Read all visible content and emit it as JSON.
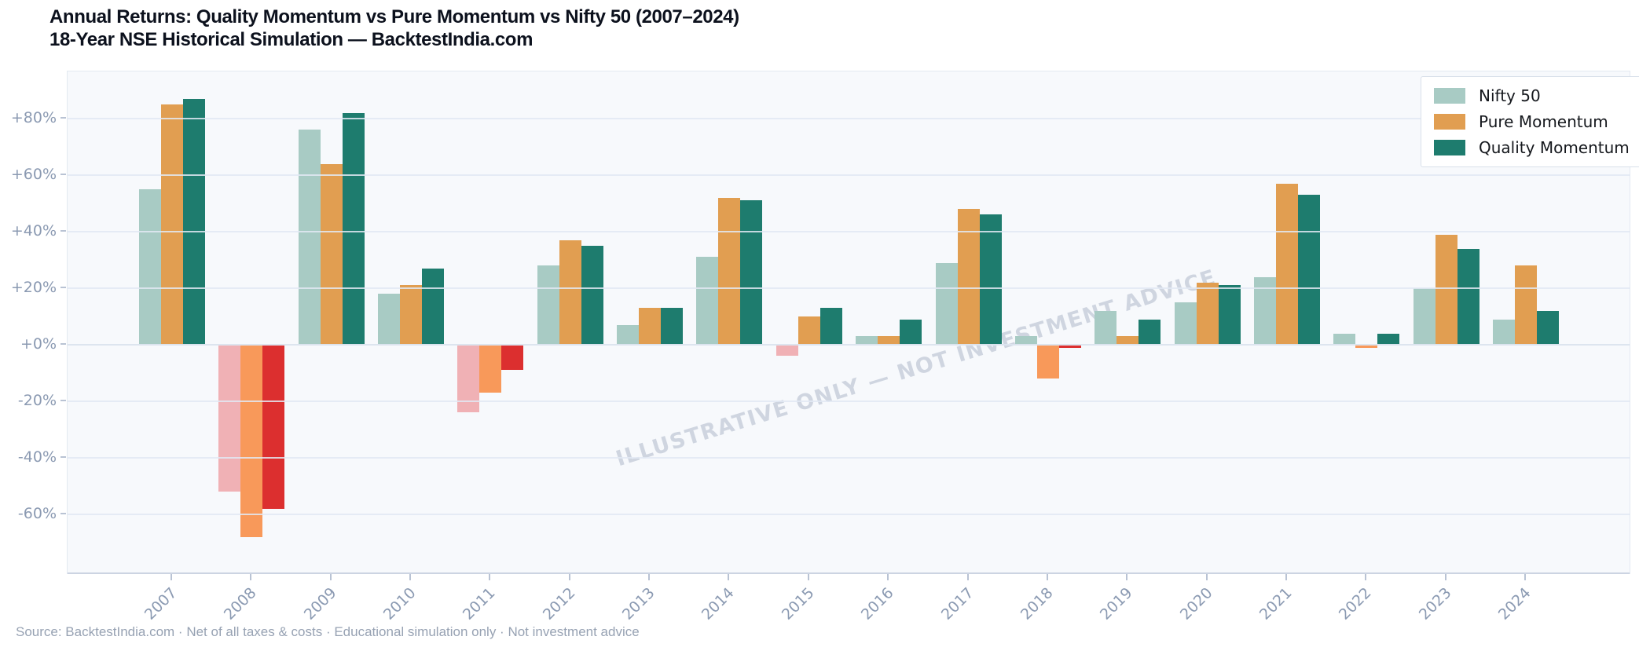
{
  "header": {
    "title_line1": "Annual Returns: Quality Momentum vs Pure Momentum vs Nifty 50 (2007–2024)",
    "title_line2": "18-Year NSE Historical Simulation — BacktestIndia.com"
  },
  "watermark_text": "ILLUSTRATIVE ONLY — NOT INVESTMENT ADVICE",
  "footer": {
    "source_line": "Source: BacktestIndia.com · Net of all taxes & costs · Educational simulation only · Not investment advice"
  },
  "legend": {
    "position": "upper-right",
    "entries": [
      {
        "label": "Nifty 50",
        "color": "#a8cbc4"
      },
      {
        "label": "Pure Momentum",
        "color": "#e19e51"
      },
      {
        "label": "Quality Momentum",
        "color": "#1e7c6e"
      }
    ]
  },
  "colors": {
    "panel_background": "#f7f9fc",
    "gridline": "#e7edf5",
    "axis_text": "#8b9ab2",
    "title_text": "#0c111d",
    "footer_text": "#97a2b3",
    "nifty_positive": "#a8cbc4",
    "nifty_negative": "#f0b1b5",
    "pure_positive": "#e19e51",
    "pure_negative": "#f8995a",
    "quality_positive": "#1e7c6e",
    "quality_negative": "#dc2f2f"
  },
  "chart_data": {
    "type": "bar",
    "title": "Annual Returns: Quality Momentum vs Pure Momentum vs Nifty 50 (2007–2024)",
    "subtitle": "18-Year NSE Historical Simulation — BacktestIndia.com",
    "categories": [
      "2007",
      "2008",
      "2009",
      "2010",
      "2011",
      "2012",
      "2013",
      "2014",
      "2015",
      "2016",
      "2017",
      "2018",
      "2019",
      "2020",
      "2021",
      "2022",
      "2023",
      "2024"
    ],
    "series": [
      {
        "name": "Nifty 50",
        "color": "#a8cbc4",
        "negative_color": "#f0b1b5",
        "values": [
          55,
          -52,
          76,
          18,
          -24,
          28,
          7,
          31,
          -4,
          3,
          29,
          3,
          12,
          15,
          24,
          4,
          20,
          9
        ]
      },
      {
        "name": "Pure Momentum",
        "color": "#e19e51",
        "negative_color": "#f8995a",
        "values": [
          85,
          -68,
          64,
          21,
          -17,
          37,
          13,
          52,
          10,
          3,
          48,
          -12,
          3,
          22,
          57,
          -1,
          39,
          28
        ]
      },
      {
        "name": "Quality Momentum",
        "color": "#1e7c6e",
        "negative_color": "#dc2f2f",
        "values": [
          87,
          -58,
          82,
          27,
          -9,
          35,
          13,
          51,
          13,
          9,
          46,
          -1,
          9,
          21,
          53,
          4,
          34,
          12
        ]
      }
    ],
    "ylabel": "",
    "xlabel": "",
    "ytick_labels": [
      "+80%",
      "+60%",
      "+40%",
      "+20%",
      "+0%",
      "-20%",
      "-40%",
      "-60%"
    ],
    "ytick_values": [
      80,
      60,
      40,
      20,
      0,
      -20,
      -40,
      -60
    ],
    "ylim": [
      -78,
      97
    ],
    "grid": true,
    "legend_position": "upper right",
    "xtick_rotation": 45,
    "unit": "percent"
  }
}
